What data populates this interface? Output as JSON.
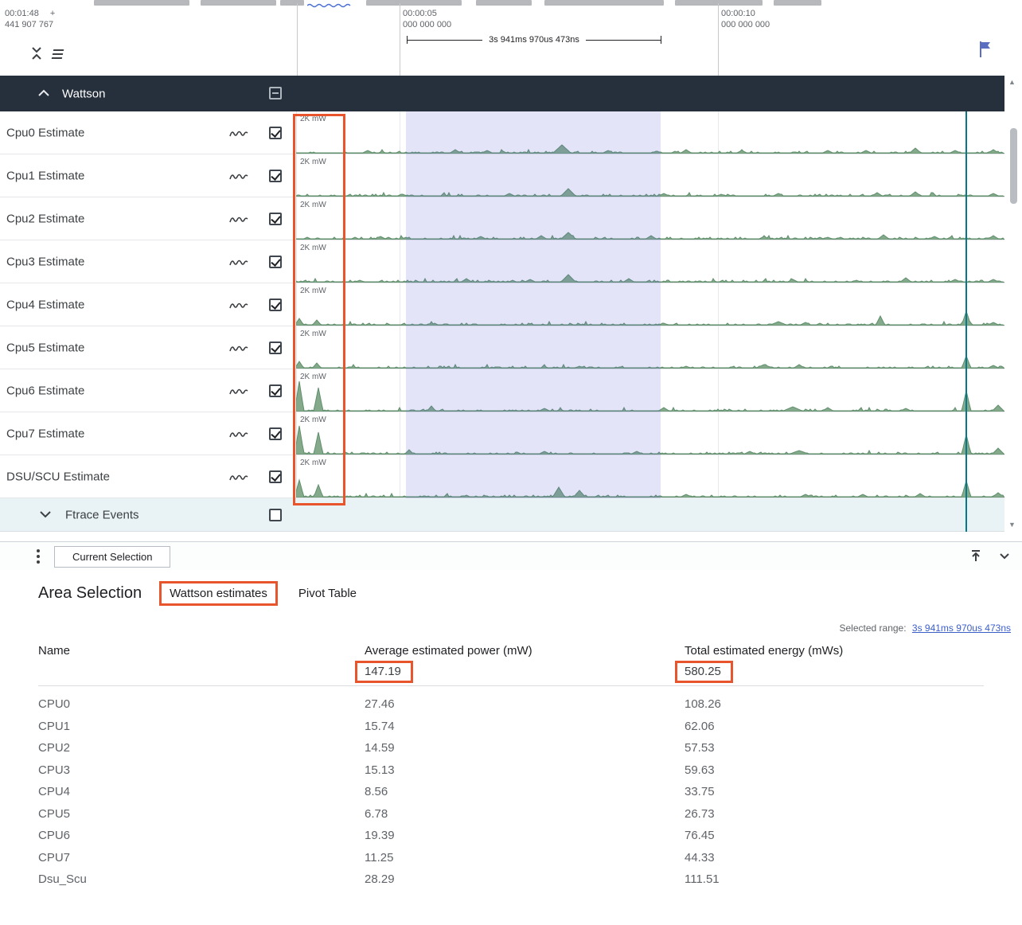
{
  "ruler": {
    "major_time": "00:01:48",
    "major_plus": "+",
    "major_offset": "441 907 767",
    "tick1_time": "00:00:05",
    "tick1_offset": "000 000 000",
    "tick2_time": "00:00:10",
    "tick2_offset": "000 000 000",
    "span_label": "3s 941ms 970us 473ns"
  },
  "track_group": {
    "label": "Wattson",
    "unit_label": "2K mW",
    "tracks": [
      {
        "label": "Cpu0 Estimate"
      },
      {
        "label": "Cpu1 Estimate"
      },
      {
        "label": "Cpu2 Estimate"
      },
      {
        "label": "Cpu3 Estimate"
      },
      {
        "label": "Cpu4 Estimate"
      },
      {
        "label": "Cpu5 Estimate"
      },
      {
        "label": "Cpu6 Estimate"
      },
      {
        "label": "Cpu7 Estimate"
      },
      {
        "label": "DSU/SCU Estimate"
      }
    ]
  },
  "ftrace": {
    "label": "Ftrace Events"
  },
  "tab_strip": {
    "current_tab": "Current Selection"
  },
  "details_panel": {
    "title": "Area Selection",
    "tabs": [
      {
        "label": "Wattson estimates"
      },
      {
        "label": "Pivot Table"
      }
    ],
    "selected_range_label": "Selected range:",
    "selected_range_value": "3s 941ms 970us 473ns",
    "table": {
      "columns": [
        "Name",
        "Average estimated power (mW)",
        "Total estimated energy (mWs)"
      ],
      "summary": {
        "power": "147.19",
        "energy": "580.25"
      },
      "rows": [
        {
          "name": "CPU0",
          "power": "27.46",
          "energy": "108.26"
        },
        {
          "name": "CPU1",
          "power": "15.74",
          "energy": "62.06"
        },
        {
          "name": "CPU2",
          "power": "14.59",
          "energy": "57.53"
        },
        {
          "name": "CPU3",
          "power": "15.13",
          "energy": "59.63"
        },
        {
          "name": "CPU4",
          "power": "8.56",
          "energy": "33.75"
        },
        {
          "name": "CPU5",
          "power": "6.78",
          "energy": "26.73"
        },
        {
          "name": "CPU6",
          "power": "19.39",
          "energy": "76.45"
        },
        {
          "name": "CPU7",
          "power": "11.25",
          "energy": "44.33"
        },
        {
          "name": "Dsu_Scu",
          "power": "28.29",
          "energy": "111.51"
        }
      ]
    }
  },
  "colors": {
    "accent_annotation": "#e8542c",
    "track_green": "#84aa8b",
    "track_green_stroke": "#5f8f6b",
    "selection_overlay": "rgba(98,108,210,0.18)",
    "marker_teal": "#06788a",
    "group_header_bg": "#262f3c",
    "link_blue": "#3b5fc9"
  }
}
